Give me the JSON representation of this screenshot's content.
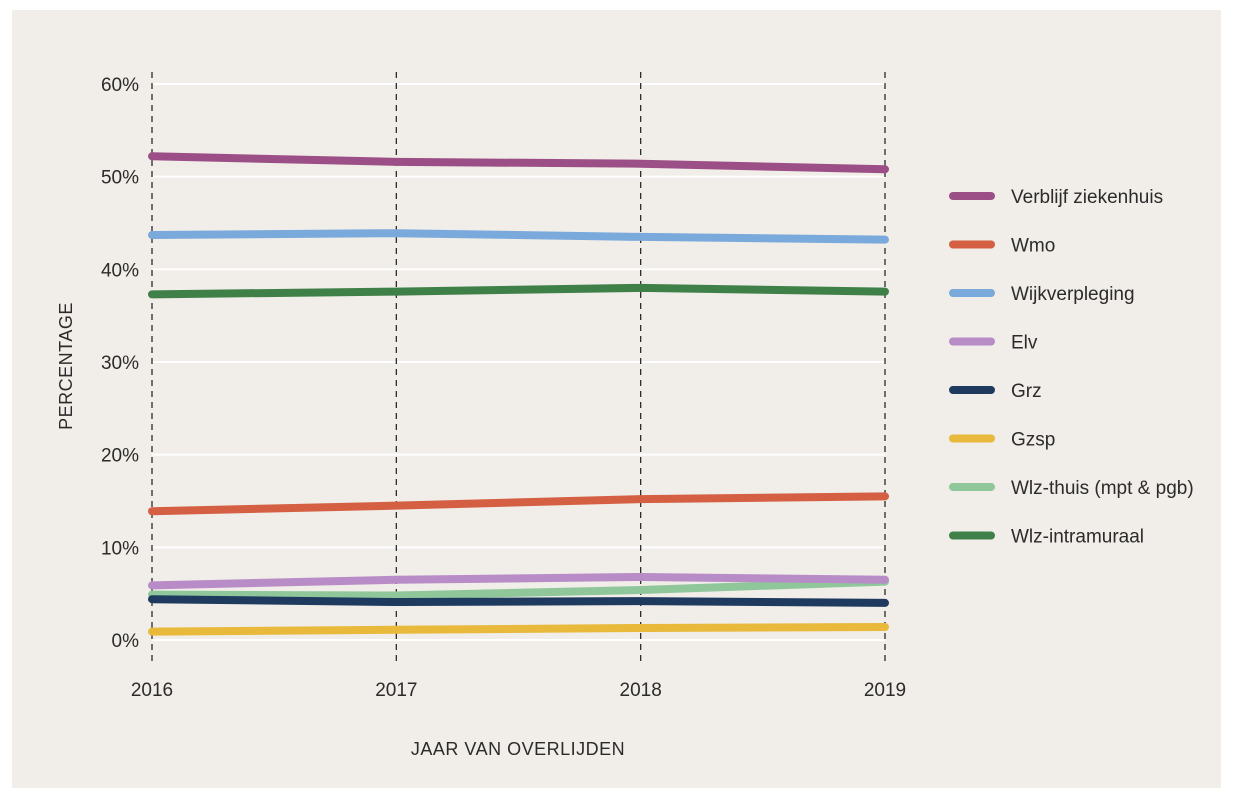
{
  "chart_data": {
    "type": "line",
    "xlabel": "JAAR VAN OVERLIJDEN",
    "ylabel": "PERCENTAGE",
    "x": [
      "2016",
      "2017",
      "2018",
      "2019"
    ],
    "ylim": [
      0,
      60
    ],
    "yticks": [
      0,
      10,
      20,
      30,
      40,
      50,
      60
    ],
    "ytick_labels": [
      "0%",
      "10%",
      "20%",
      "30%",
      "40%",
      "50%",
      "60%"
    ],
    "grid": "horizontal solid, vertical dashed at each year",
    "legend_position": "right",
    "series": [
      {
        "name": "Verblijf ziekenhuis",
        "color": "#9b4f86",
        "values": [
          52.2,
          51.6,
          51.4,
          50.8
        ]
      },
      {
        "name": "Wmo",
        "color": "#d45f43",
        "values": [
          13.9,
          14.5,
          15.2,
          15.5
        ]
      },
      {
        "name": "Wijkverpleging",
        "color": "#7aa9dc",
        "values": [
          43.7,
          43.9,
          43.5,
          43.2
        ]
      },
      {
        "name": "Elv",
        "color": "#b88cc7",
        "values": [
          5.9,
          6.5,
          6.8,
          6.5
        ]
      },
      {
        "name": "Grz",
        "color": "#1e3a5f",
        "values": [
          4.4,
          4.1,
          4.2,
          4.0
        ]
      },
      {
        "name": "Gzsp",
        "color": "#e8b93a",
        "values": [
          0.9,
          1.1,
          1.3,
          1.4
        ]
      },
      {
        "name": "Wlz-thuis (mpt & pgb)",
        "color": "#8fc79b",
        "values": [
          4.9,
          4.8,
          5.4,
          6.3
        ]
      },
      {
        "name": "Wlz-intramuraal",
        "color": "#3f8049",
        "values": [
          37.3,
          37.6,
          38.0,
          37.6
        ]
      }
    ]
  }
}
